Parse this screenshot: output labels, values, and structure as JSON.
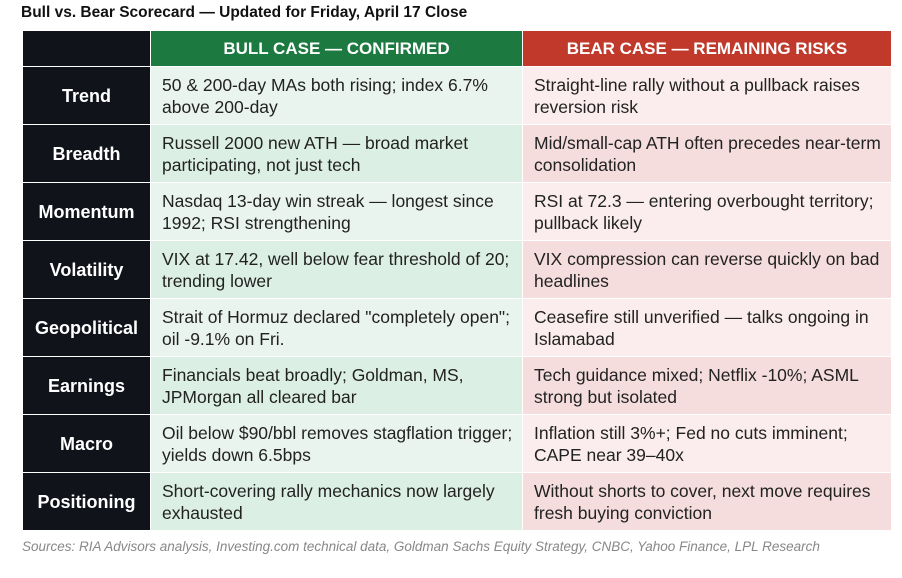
{
  "title": "Bull vs. Bear Scorecard — Updated for Friday, April 17 Close",
  "headers": {
    "corner": "",
    "bull": "BULL CASE — CONFIRMED",
    "bear": "BEAR CASE — REMAINING RISKS"
  },
  "colors": {
    "label_bg": "#10131a",
    "bull_header": "#1c7a40",
    "bear_header": "#c0392b"
  },
  "rows": [
    {
      "label": "Trend",
      "bull": "50 & 200-day MAs both rising; index 6.7% above 200-day",
      "bear": "Straight-line rally without a pullback raises reversion risk"
    },
    {
      "label": "Breadth",
      "bull": "Russell 2000 new ATH — broad market participating, not just tech",
      "bear": "Mid/small-cap ATH often precedes near-term consolidation"
    },
    {
      "label": "Momentum",
      "bull": "Nasdaq 13-day win streak — longest since 1992; RSI strengthening",
      "bear": "RSI at 72.3 — entering overbought territory; pullback likely"
    },
    {
      "label": "Volatility",
      "bull": "VIX at 17.42, well below fear threshold of 20; trending lower",
      "bear": "VIX compression can reverse quickly on bad headlines"
    },
    {
      "label": "Geopolitical",
      "bull": "Strait of Hormuz declared \"completely open\"; oil -9.1% on Fri.",
      "bear": "Ceasefire still unverified — talks ongoing in Islamabad"
    },
    {
      "label": "Earnings",
      "bull": "Financials beat broadly; Goldman, MS, JPMorgan all cleared bar",
      "bear": "Tech guidance mixed; Netflix -10%; ASML strong but isolated"
    },
    {
      "label": "Macro",
      "bull": "Oil below $90/bbl removes stagflation trigger; yields down 6.5bps",
      "bear": "Inflation still 3%+; Fed no cuts imminent; CAPE near 39–40x"
    },
    {
      "label": "Positioning",
      "bull": "Short-covering rally mechanics now largely exhausted",
      "bear": "Without shorts to cover, next move requires fresh buying conviction"
    }
  ],
  "sources": "Sources: RIA Advisors analysis, Investing.com technical data, Goldman Sachs Equity Strategy, CNBC, Yahoo Finance, LPL Research"
}
